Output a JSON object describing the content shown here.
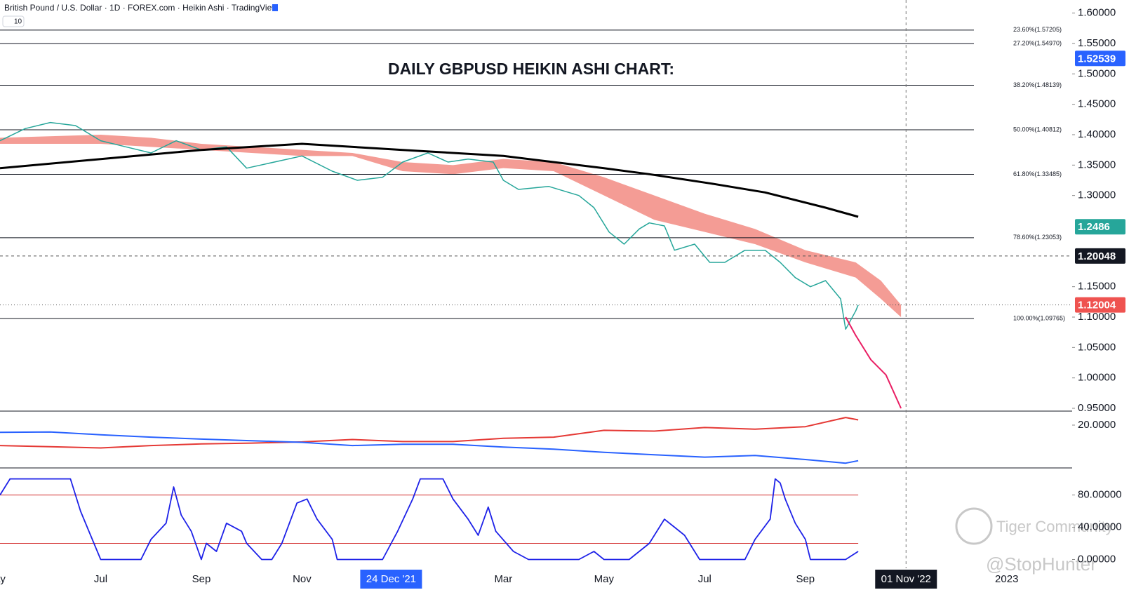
{
  "toolbar": {
    "symbol": "British Pound / U.S. Dollar · 1D · FOREX.com · Heikin Ashi · TradingView",
    "interval": "10"
  },
  "watermark": [
    "Tiger Community",
    "@StopHunter"
  ],
  "chart_data": [
    {
      "type": "line",
      "title": "DAILY GBPUSD HEIKIN ASHI CHART:",
      "xlim": [
        0,
        21.3
      ],
      "ylim": [
        0.9454,
        1.6215
      ],
      "yticks": [
        {
          "value": 1.6,
          "label": "1.60000"
        },
        {
          "value": 1.55,
          "label": "1.55000"
        },
        {
          "value": 1.5,
          "label": "1.50000"
        },
        {
          "value": 1.45,
          "label": "1.45000"
        },
        {
          "value": 1.4,
          "label": "1.40000"
        },
        {
          "value": 1.35,
          "label": "1.35000"
        },
        {
          "value": 1.3,
          "label": "1.30000"
        },
        {
          "value": 1.15,
          "label": "1.15000"
        },
        {
          "value": 1.1,
          "label": "1.10000"
        },
        {
          "value": 1.05,
          "label": "1.05000"
        },
        {
          "value": 1.0,
          "label": "1.00000"
        },
        {
          "value": 0.95,
          "label": "0.95000"
        }
      ],
      "xticks": [
        {
          "value": 0,
          "label": "ay"
        },
        {
          "value": 2,
          "label": "Jul"
        },
        {
          "value": 4,
          "label": "Sep"
        },
        {
          "value": 6,
          "label": "Nov"
        },
        {
          "value": 7.77,
          "label": "24 Dec '21",
          "background": "#2962ff"
        },
        {
          "value": 10,
          "label": "Mar"
        },
        {
          "value": 12,
          "label": "May"
        },
        {
          "value": 14,
          "label": "Jul"
        },
        {
          "value": 16,
          "label": "Sep"
        },
        {
          "value": 18,
          "label": "01 Nov '22",
          "background": "#131722",
          "crosshair": true
        },
        {
          "value": 20,
          "label": "2023"
        }
      ],
      "levels": [
        {
          "value": 1.57205,
          "label": "23.60%(1.57205)"
        },
        {
          "value": 1.5497,
          "label": "27.20%(1.54970)"
        },
        {
          "value": 1.48139,
          "label": "38.20%(1.48139)"
        },
        {
          "value": 1.40812,
          "label": "50.00%(1.40812)"
        },
        {
          "value": 1.33485,
          "label": "61.80%(1.33485)"
        },
        {
          "value": 1.23053,
          "label": "78.60%(1.23053)"
        },
        {
          "value": 1.09765,
          "label": "100.00%(1.09765)"
        }
      ],
      "cloud": {
        "color": "#f28b82",
        "x": [
          0,
          2,
          3,
          4,
          5,
          6,
          7,
          8,
          9,
          10,
          11,
          12,
          13,
          14,
          15,
          16,
          17,
          17.5,
          17.9
        ],
        "upper": [
          1.395,
          1.4,
          1.395,
          1.385,
          1.38,
          1.375,
          1.37,
          1.355,
          1.35,
          1.36,
          1.355,
          1.33,
          1.3,
          1.27,
          1.245,
          1.21,
          1.19,
          1.16,
          1.12
        ],
        "lower": [
          1.385,
          1.385,
          1.38,
          1.375,
          1.37,
          1.365,
          1.365,
          1.34,
          1.335,
          1.345,
          1.34,
          1.3,
          1.26,
          1.24,
          1.22,
          1.19,
          1.165,
          1.13,
          1.1
        ]
      },
      "series": [
        {
          "color": "#26a69a",
          "width": 1.5,
          "x": [
            0,
            0.5,
            1,
            1.5,
            2,
            2.5,
            3,
            3.5,
            4,
            4.5,
            4.9,
            6,
            6.6,
            7.1,
            7.6,
            8,
            8.5,
            8.9,
            9.3,
            9.8,
            10,
            10.3,
            10.9,
            11.5,
            11.8,
            12.1,
            12.4,
            12.7,
            12.9,
            13.2,
            13.4,
            13.8,
            14.1,
            14.4,
            14.8,
            15.2,
            15.5,
            15.8,
            16.1,
            16.4,
            16.7,
            16.8,
            17,
            17.05
          ],
          "values": [
            1.39,
            1.41,
            1.42,
            1.415,
            1.39,
            1.38,
            1.37,
            1.39,
            1.375,
            1.38,
            1.345,
            1.365,
            1.34,
            1.325,
            1.33,
            1.355,
            1.37,
            1.355,
            1.36,
            1.355,
            1.325,
            1.31,
            1.315,
            1.3,
            1.28,
            1.24,
            1.22,
            1.245,
            1.255,
            1.25,
            1.21,
            1.22,
            1.19,
            1.19,
            1.21,
            1.21,
            1.19,
            1.165,
            1.15,
            1.16,
            1.13,
            1.08,
            1.11,
            1.12
          ]
        },
        {
          "color": "#000000",
          "width": 3,
          "x": [
            0,
            2,
            4,
            6,
            8,
            10,
            12,
            12.9,
            14.1,
            15.2,
            16.4,
            17.05
          ],
          "values": [
            1.345,
            1.36,
            1.375,
            1.385,
            1.375,
            1.365,
            1.345,
            1.335,
            1.32,
            1.305,
            1.28,
            1.265
          ]
        },
        {
          "color": "#e91e63",
          "width": 2,
          "x": [
            16.8,
            17,
            17.3,
            17.6,
            17.9
          ],
          "values": [
            1.1,
            1.07,
            1.03,
            1.005,
            0.95
          ]
        }
      ],
      "price_labels": [
        {
          "value": 1.52539,
          "color": "#2962ff"
        },
        {
          "value": 1.2486,
          "color": "#26a69a"
        },
        {
          "value": 1.20048,
          "color": "#131722",
          "line": "dashed"
        },
        {
          "value": 1.12004,
          "color": "#ef5350",
          "line": "dotted"
        }
      ]
    },
    {
      "type": "line",
      "xlim": [
        0,
        21.3
      ],
      "ylim": [
        9.3,
        23.5
      ],
      "yticks": [
        {
          "value": 20,
          "label": "20.0000"
        }
      ],
      "series": [
        {
          "color": "#e53935",
          "width": 2,
          "x": [
            0,
            1,
            2,
            3,
            4,
            5,
            6,
            7,
            8,
            9,
            10,
            11,
            12,
            13,
            14,
            15,
            16,
            16.8,
            17.05
          ],
          "values": [
            14.9,
            14.6,
            14.3,
            14.9,
            15.3,
            15.5,
            15.8,
            16.4,
            15.9,
            15.9,
            16.7,
            17.0,
            18.7,
            18.5,
            19.4,
            19.0,
            19.6,
            21.9,
            21.3
          ]
        },
        {
          "color": "#2962ff",
          "width": 2,
          "x": [
            0,
            1,
            2,
            3,
            4,
            5,
            6,
            7,
            8,
            9,
            10,
            11,
            12,
            13,
            14,
            15,
            16,
            16.8,
            17.05
          ],
          "values": [
            18.2,
            18.3,
            17.6,
            17.0,
            16.5,
            16.1,
            15.7,
            14.9,
            15.2,
            15.2,
            14.5,
            14.0,
            13.2,
            12.6,
            12.0,
            12.4,
            11.4,
            10.5,
            11.1
          ]
        }
      ]
    },
    {
      "type": "line",
      "xlim": [
        0,
        21.3
      ],
      "ylim": [
        -10.9,
        113.6
      ],
      "yticks": [
        {
          "value": 80,
          "label": "80.00000"
        },
        {
          "value": 40,
          "label": "40.00000"
        },
        {
          "value": 0,
          "label": "0.00000"
        }
      ],
      "levels": [
        {
          "value": 80,
          "color": "#d32f2f"
        },
        {
          "value": 20,
          "color": "#d32f2f"
        }
      ],
      "series": [
        {
          "color": "#1e22e8",
          "width": 1.8,
          "x": [
            0,
            0.2,
            1.0,
            1.4,
            1.6,
            1.8,
            2.0,
            2.5,
            2.8,
            3.0,
            3.3,
            3.45,
            3.6,
            3.8,
            4.0,
            4.1,
            4.3,
            4.5,
            4.8,
            4.9,
            5.2,
            5.4,
            5.6,
            5.9,
            6.1,
            6.3,
            6.6,
            6.7,
            7.6,
            7.9,
            8.2,
            8.35,
            8.8,
            9.0,
            9.3,
            9.5,
            9.7,
            9.85,
            10.2,
            10.5,
            11.5,
            11.8,
            12.0,
            12.5,
            12.9,
            13.2,
            13.4,
            13.6,
            13.9,
            14.2,
            14.8,
            15.0,
            15.3,
            15.4,
            15.5,
            15.6,
            15.8,
            16.0,
            16.1,
            16.8,
            17.05
          ],
          "values": [
            80,
            100,
            100,
            100,
            60,
            30,
            0,
            0,
            0,
            25,
            45,
            90,
            55,
            35,
            0,
            20,
            10,
            45,
            35,
            20,
            0,
            0,
            20,
            70,
            75,
            50,
            25,
            0,
            0,
            35,
            75,
            100,
            100,
            75,
            50,
            30,
            65,
            35,
            10,
            0,
            0,
            10,
            0,
            0,
            20,
            50,
            40,
            30,
            0,
            0,
            0,
            25,
            50,
            100,
            95,
            75,
            45,
            25,
            0,
            0,
            10
          ]
        }
      ]
    }
  ]
}
